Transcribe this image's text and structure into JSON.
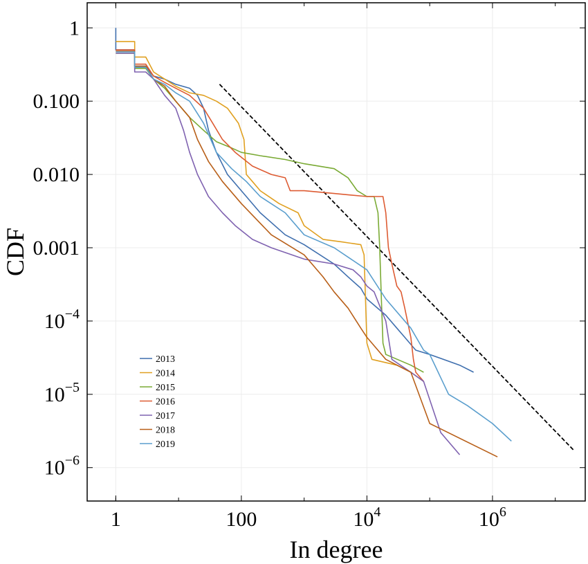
{
  "chart_data": {
    "type": "line",
    "xlabel": "In degree",
    "ylabel": "CDF",
    "x_scale": "log",
    "y_scale": "log",
    "xlim": [
      0.35,
      30000000
    ],
    "ylim": [
      3.5e-07,
      2.2
    ],
    "grid": true,
    "legend_position": "lower-left",
    "x_ticks": [
      {
        "value": 1,
        "mant": "1",
        "exp": ""
      },
      {
        "value": 100,
        "mant": "100",
        "exp": ""
      },
      {
        "value": 10000,
        "mant": "10",
        "exp": "4"
      },
      {
        "value": 1000000,
        "mant": "10",
        "exp": "6"
      }
    ],
    "y_ticks": [
      {
        "value": 1,
        "mant": "1",
        "exp": ""
      },
      {
        "value": 0.1,
        "mant": "0.100",
        "exp": ""
      },
      {
        "value": 0.01,
        "mant": "0.010",
        "exp": ""
      },
      {
        "value": 0.001,
        "mant": "0.001",
        "exp": ""
      },
      {
        "value": 0.0001,
        "mant": "10",
        "exp": "−4"
      },
      {
        "value": 1e-05,
        "mant": "10",
        "exp": "−5"
      },
      {
        "value": 1e-06,
        "mant": "10",
        "exp": "−6"
      }
    ],
    "reference_line": {
      "style": "dashed",
      "color": "#000000",
      "points": [
        [
          45,
          0.17
        ],
        [
          20000000,
          1.7e-06
        ]
      ]
    },
    "series": [
      {
        "name": "2013",
        "color": "#3f6fae",
        "points": [
          [
            1,
            1
          ],
          [
            1,
            0.5
          ],
          [
            2,
            0.5
          ],
          [
            2,
            0.3
          ],
          [
            3,
            0.3
          ],
          [
            4,
            0.22
          ],
          [
            6,
            0.2
          ],
          [
            9,
            0.17
          ],
          [
            15,
            0.15
          ],
          [
            20,
            0.12
          ],
          [
            25,
            0.08
          ],
          [
            30,
            0.04
          ],
          [
            40,
            0.02
          ],
          [
            60,
            0.01
          ],
          [
            100,
            0.006
          ],
          [
            200,
            0.003
          ],
          [
            500,
            0.0015
          ],
          [
            1000,
            0.0011
          ],
          [
            3000,
            0.0006
          ],
          [
            5000,
            0.0004
          ],
          [
            8000,
            0.00028
          ],
          [
            10000,
            0.0002
          ],
          [
            20000,
            0.00012
          ],
          [
            30000,
            8e-05
          ],
          [
            40000,
            6e-05
          ],
          [
            60000,
            4e-05
          ],
          [
            100000,
            3.5e-05
          ],
          [
            300000,
            2.5e-05
          ],
          [
            500000,
            2e-05
          ]
        ]
      },
      {
        "name": "2014",
        "color": "#e0a020",
        "points": [
          [
            1,
            0.65
          ],
          [
            2,
            0.65
          ],
          [
            2,
            0.4
          ],
          [
            3,
            0.4
          ],
          [
            4,
            0.25
          ],
          [
            6,
            0.2
          ],
          [
            9,
            0.16
          ],
          [
            15,
            0.13
          ],
          [
            25,
            0.12
          ],
          [
            40,
            0.1
          ],
          [
            60,
            0.08
          ],
          [
            90,
            0.05
          ],
          [
            110,
            0.03
          ],
          [
            120,
            0.01
          ],
          [
            150,
            0.008
          ],
          [
            200,
            0.006
          ],
          [
            400,
            0.004
          ],
          [
            800,
            0.003
          ],
          [
            1000,
            0.002
          ],
          [
            2000,
            0.0013
          ],
          [
            4000,
            0.0012
          ],
          [
            8000,
            0.0011
          ],
          [
            9000,
            0.0008
          ],
          [
            10000,
            5e-05
          ],
          [
            12000,
            3e-05
          ],
          [
            30000,
            2.5e-05
          ],
          [
            50000,
            2e-05
          ],
          [
            80000,
            1.5e-05
          ]
        ]
      },
      {
        "name": "2015",
        "color": "#7aaa34",
        "points": [
          [
            1,
            0.45
          ],
          [
            2,
            0.45
          ],
          [
            2,
            0.28
          ],
          [
            3,
            0.28
          ],
          [
            4,
            0.2
          ],
          [
            6,
            0.15
          ],
          [
            9,
            0.1
          ],
          [
            15,
            0.06
          ],
          [
            25,
            0.04
          ],
          [
            40,
            0.028
          ],
          [
            70,
            0.023
          ],
          [
            100,
            0.02
          ],
          [
            200,
            0.018
          ],
          [
            500,
            0.016
          ],
          [
            1000,
            0.014
          ],
          [
            3000,
            0.012
          ],
          [
            5000,
            0.009
          ],
          [
            7000,
            0.006
          ],
          [
            10000,
            0.005
          ],
          [
            13000,
            0.005
          ],
          [
            15000,
            0.003
          ],
          [
            16000,
            0.001
          ],
          [
            17000,
            0.0002
          ],
          [
            18000,
            5e-05
          ],
          [
            20000,
            3.5e-05
          ],
          [
            50000,
            2.5e-05
          ],
          [
            80000,
            2e-05
          ]
        ]
      },
      {
        "name": "2016",
        "color": "#dd5b32",
        "points": [
          [
            1,
            0.5
          ],
          [
            2,
            0.5
          ],
          [
            2,
            0.32
          ],
          [
            3,
            0.32
          ],
          [
            4,
            0.22
          ],
          [
            6,
            0.18
          ],
          [
            9,
            0.15
          ],
          [
            15,
            0.12
          ],
          [
            25,
            0.08
          ],
          [
            35,
            0.05
          ],
          [
            50,
            0.03
          ],
          [
            80,
            0.02
          ],
          [
            150,
            0.013
          ],
          [
            300,
            0.01
          ],
          [
            500,
            0.009
          ],
          [
            600,
            0.006
          ],
          [
            1000,
            0.006
          ],
          [
            3000,
            0.0055
          ],
          [
            10000,
            0.005
          ],
          [
            18000,
            0.005
          ],
          [
            20000,
            0.003
          ],
          [
            22000,
            0.001
          ],
          [
            25000,
            0.0006
          ],
          [
            30000,
            0.0003
          ],
          [
            35000,
            0.00025
          ],
          [
            40000,
            0.00015
          ],
          [
            50000,
            6e-05
          ],
          [
            55000,
            3e-05
          ],
          [
            60000,
            2e-05
          ],
          [
            80000,
            1.5e-05
          ]
        ]
      },
      {
        "name": "2017",
        "color": "#7f62b0",
        "points": [
          [
            1,
            0.45
          ],
          [
            2,
            0.45
          ],
          [
            2,
            0.25
          ],
          [
            3,
            0.25
          ],
          [
            4,
            0.2
          ],
          [
            6,
            0.12
          ],
          [
            9,
            0.08
          ],
          [
            12,
            0.04
          ],
          [
            15,
            0.02
          ],
          [
            20,
            0.01
          ],
          [
            30,
            0.005
          ],
          [
            50,
            0.003
          ],
          [
            80,
            0.002
          ],
          [
            150,
            0.0013
          ],
          [
            300,
            0.001
          ],
          [
            1000,
            0.0007
          ],
          [
            3000,
            0.0006
          ],
          [
            6000,
            0.0005
          ],
          [
            8000,
            0.0004
          ],
          [
            10000,
            0.0003
          ],
          [
            13000,
            0.00025
          ],
          [
            20000,
            0.0001
          ],
          [
            25000,
            3e-05
          ],
          [
            50000,
            2e-05
          ],
          [
            80000,
            1.5e-05
          ],
          [
            150000,
            3e-06
          ],
          [
            300000,
            1.5e-06
          ]
        ]
      },
      {
        "name": "2018",
        "color": "#b85f18",
        "points": [
          [
            1,
            0.48
          ],
          [
            2,
            0.48
          ],
          [
            2,
            0.3
          ],
          [
            3,
            0.3
          ],
          [
            4,
            0.2
          ],
          [
            6,
            0.16
          ],
          [
            9,
            0.1
          ],
          [
            15,
            0.06
          ],
          [
            20,
            0.03
          ],
          [
            30,
            0.015
          ],
          [
            50,
            0.008
          ],
          [
            100,
            0.004
          ],
          [
            300,
            0.0015
          ],
          [
            1000,
            0.0008
          ],
          [
            2000,
            0.0004
          ],
          [
            3000,
            0.00025
          ],
          [
            5000,
            0.00015
          ],
          [
            8000,
            8e-05
          ],
          [
            10000,
            6e-05
          ],
          [
            20000,
            3e-05
          ],
          [
            50000,
            2e-05
          ],
          [
            100000,
            4e-06
          ],
          [
            1200000,
            1.4e-06
          ]
        ]
      },
      {
        "name": "2019",
        "color": "#5a9ecd",
        "points": [
          [
            1,
            0.47
          ],
          [
            2,
            0.47
          ],
          [
            2,
            0.29
          ],
          [
            3,
            0.29
          ],
          [
            4,
            0.2
          ],
          [
            6,
            0.17
          ],
          [
            9,
            0.13
          ],
          [
            15,
            0.1
          ],
          [
            25,
            0.05
          ],
          [
            40,
            0.02
          ],
          [
            70,
            0.012
          ],
          [
            120,
            0.008
          ],
          [
            200,
            0.005
          ],
          [
            500,
            0.003
          ],
          [
            1000,
            0.0015
          ],
          [
            3000,
            0.001
          ],
          [
            10000,
            0.0005
          ],
          [
            20000,
            0.0002
          ],
          [
            50000,
            8e-05
          ],
          [
            80000,
            4e-05
          ],
          [
            100000,
            3.5e-05
          ],
          [
            200000,
            1e-05
          ],
          [
            400000,
            7e-06
          ],
          [
            1000000,
            4e-06
          ],
          [
            2000000,
            2.3e-06
          ]
        ]
      }
    ]
  }
}
